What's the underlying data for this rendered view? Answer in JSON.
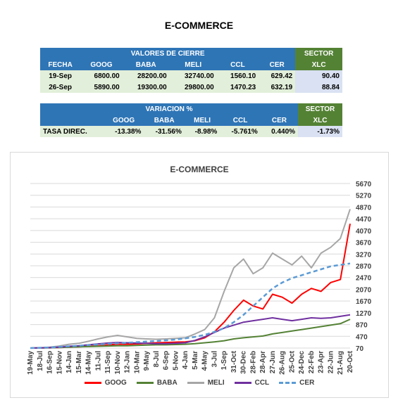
{
  "title": "E-COMMERCE",
  "table_close": {
    "header": "VALORES DE CIERRE",
    "sector_header": "SECTOR",
    "columns": [
      "FECHA",
      "GOOG",
      "BABA",
      "MELI",
      "CCL",
      "CER",
      "XLC"
    ],
    "rows": [
      [
        "19-Sep",
        "6800.00",
        "28200.00",
        "32740.00",
        "1560.10",
        "629.42",
        "90.40"
      ],
      [
        "26-Sep",
        "5890.00",
        "19300.00",
        "29800.00",
        "1470.23",
        "632.19",
        "88.84"
      ]
    ]
  },
  "table_var": {
    "header": "VARIACION %",
    "sector_header": "SECTOR",
    "columns": [
      "",
      "GOOG",
      "BABA",
      "MELI",
      "CCL",
      "CER",
      "XLC"
    ],
    "row": [
      "TASA DIREC.",
      "-13.38%",
      "-31.56%",
      "-8.98%",
      "-5.761%",
      "0.440%",
      "-1.73%"
    ]
  },
  "chart_data": {
    "type": "line",
    "title": "E-COMMERCE",
    "x_ticks": [
      "19-May",
      "18-Jul",
      "16-Sep",
      "15-Nov",
      "14-Jan",
      "15-Mar",
      "14-May",
      "11-Jul",
      "11-Sep",
      "10-Nov",
      "12-Jan",
      "10-Mar",
      "9-May",
      "8-Jul",
      "6-Sep",
      "5-Nov",
      "4-Jan",
      "5-Mar",
      "4-May",
      "3-Jul",
      "1-Sep",
      "31-Oct",
      "30-Dec",
      "28-Feb",
      "28-Apr",
      "27-Jun",
      "26-Aug",
      "25-Oct",
      "24-Dec",
      "22-Feb",
      "23-Apr",
      "22-Jun",
      "21-Aug",
      "20-Oct"
    ],
    "y_ticks": [
      70,
      470,
      870,
      1270,
      1670,
      2070,
      2470,
      2870,
      3270,
      3670,
      4070,
      4470,
      4870,
      5270,
      5670
    ],
    "ylim": [
      70,
      5670
    ],
    "grid": true,
    "legend_position": "bottom",
    "series": [
      {
        "name": "GOOG",
        "color": "#ff0000",
        "values": [
          70,
          75,
          80,
          90,
          100,
          110,
          130,
          150,
          180,
          200,
          200,
          210,
          230,
          250,
          260,
          270,
          280,
          320,
          420,
          620,
          950,
          1350,
          1700,
          1500,
          1400,
          1900,
          1800,
          1600,
          1900,
          2100,
          2000,
          2300,
          2400,
          4300
        ]
      },
      {
        "name": "BABA",
        "color": "#548235",
        "values": [
          70,
          75,
          80,
          90,
          100,
          110,
          120,
          130,
          140,
          150,
          150,
          160,
          170,
          180,
          180,
          190,
          200,
          220,
          250,
          280,
          320,
          380,
          420,
          450,
          480,
          550,
          600,
          650,
          700,
          750,
          800,
          850,
          900,
          1050
        ]
      },
      {
        "name": "MELI",
        "color": "#a6a6a6",
        "values": [
          70,
          80,
          100,
          140,
          200,
          230,
          300,
          380,
          450,
          500,
          450,
          400,
          380,
          370,
          380,
          400,
          420,
          550,
          700,
          1100,
          2000,
          2800,
          3100,
          2600,
          2800,
          3300,
          3100,
          2900,
          3200,
          2800,
          3300,
          3500,
          3800,
          4800
        ]
      },
      {
        "name": "CCL",
        "color": "#7030a0",
        "values": [
          70,
          75,
          85,
          100,
          130,
          150,
          180,
          210,
          240,
          260,
          250,
          240,
          230,
          220,
          220,
          230,
          250,
          330,
          450,
          600,
          750,
          850,
          950,
          1000,
          1050,
          1100,
          1050,
          1000,
          1050,
          1100,
          1080,
          1100,
          1150,
          1200
        ]
      },
      {
        "name": "CER",
        "color": "#5b9bd5",
        "dashed": true,
        "values": [
          70,
          80,
          90,
          110,
          130,
          150,
          170,
          190,
          210,
          230,
          250,
          270,
          290,
          310,
          330,
          360,
          400,
          450,
          520,
          620,
          750,
          950,
          1200,
          1500,
          1800,
          2100,
          2300,
          2450,
          2550,
          2650,
          2750,
          2850,
          2900,
          2950
        ]
      }
    ]
  }
}
